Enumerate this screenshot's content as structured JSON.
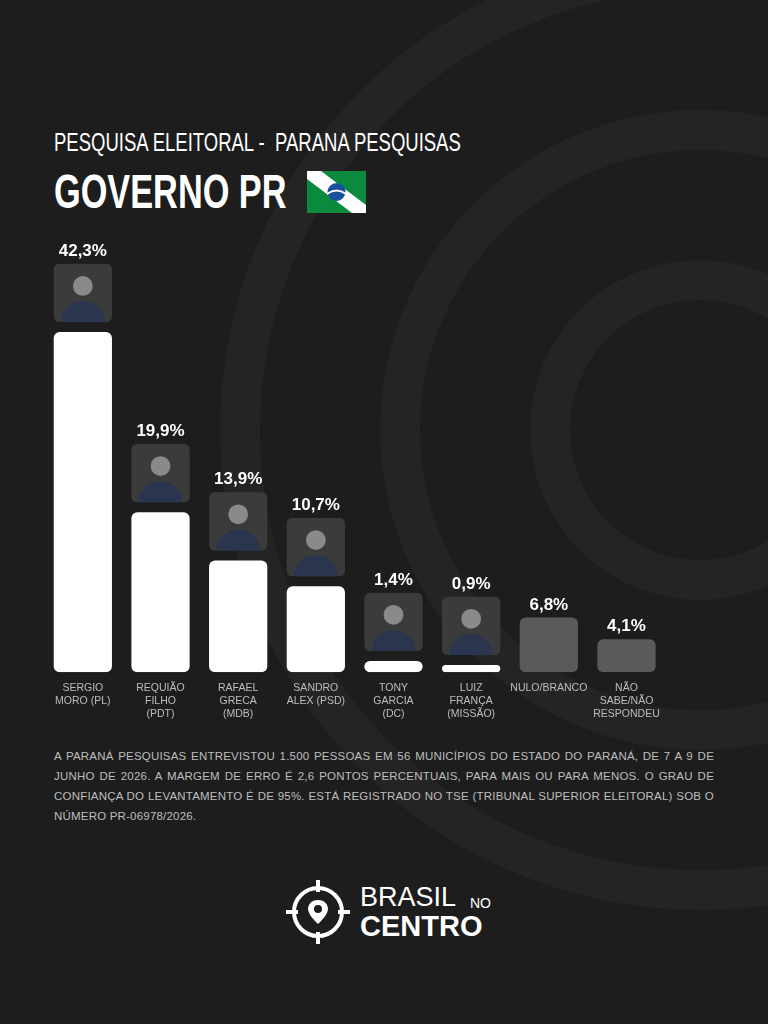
{
  "chart_data": {
    "type": "bar",
    "title": "PESQUISA ELEITORAL -  PARANA PESQUISAS",
    "subtitle": "GOVERNO PR",
    "categories": [
      "SERGIO MORO (PL)",
      "REQUIÃO FILHO (PDT)",
      "RAFAEL GRECA (MDB)",
      "SANDRO ALEX (PSD)",
      "TONY GARCIA (DC)",
      "LUIZ FRANÇA (MISSÃO)",
      "NULO/BRANCO",
      "NÃO SABE/NÃO RESPONDEU"
    ],
    "values": [
      42.3,
      19.9,
      13.9,
      10.7,
      1.4,
      0.9,
      6.8,
      4.1
    ],
    "value_labels": [
      "42,3%",
      "19,9%",
      "13,9%",
      "10,7%",
      "1,4%",
      "0,9%",
      "6,8%",
      "4,1%"
    ],
    "colors": [
      "#ffffff",
      "#ffffff",
      "#ffffff",
      "#ffffff",
      "#ffffff",
      "#ffffff",
      "#5a5a5a",
      "#5a5a5a"
    ],
    "ylim": [
      0,
      42.3
    ],
    "data_labels": true,
    "tick_labels": "x",
    "grid": false,
    "note": "A PARANÁ PESQUISAS ENTREVISTOU 1.500 PESSOAS EM 56 MUNICÍPIOS DO ESTADO DO PARANÁ, DE 7 A 9 DE JUNHO DE 2026. A MARGEM DE ERRO É 2,6 PONTOS PERCENTUAIS, PARA MAIS OU PARA MENOS. O GRAU DE CONFIANÇA DO LEVANTAMENTO É DE 95%. ESTÁ REGISTRADO NO TSE (TRIBUNAL SUPERIOR ELEITORAL) SOB O NÚMERO PR-06978/2026.",
    "brand": {
      "line1": "BRASIL",
      "small": "NO",
      "line2": "CENTRO"
    }
  }
}
